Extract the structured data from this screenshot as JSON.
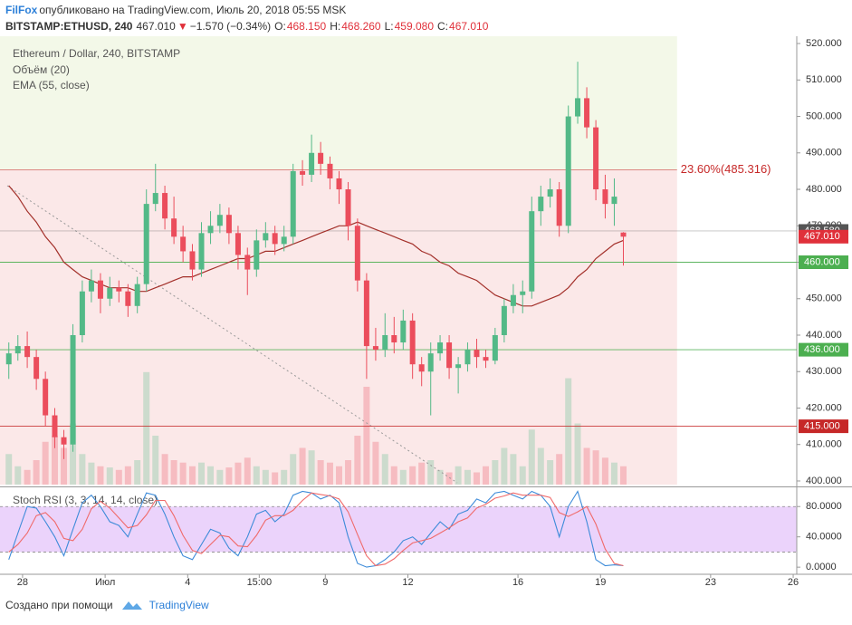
{
  "header": {
    "author": "FilFox",
    "published": "опубликовано на TradingView.com, Июль 20, 2018 05:55 MSK",
    "symbol": "BITSTAMP:ETHUSD, 240",
    "last": "467.010",
    "arrow": "▼",
    "change": "−1.570 (−0.34%)",
    "ohlc": [
      {
        "k": "O:",
        "v": "468.150"
      },
      {
        "k": "H:",
        "v": "468.260"
      },
      {
        "k": "L:",
        "v": "459.080"
      },
      {
        "k": "C:",
        "v": "467.010"
      }
    ]
  },
  "footer": {
    "text": "Создано при помощи",
    "brand": "TradingView"
  },
  "chart_data": {
    "type": "candlestick",
    "title": "Ethereum / Dollar, 240, BITSTAMP",
    "up_color": "#53b987",
    "down_color": "#eb4d5c",
    "x": [
      -0.5,
      -0.17,
      0.17,
      0.5,
      0.83,
      1.17,
      1.5,
      1.83,
      2.17,
      2.5,
      2.83,
      3.17,
      3.5,
      3.83,
      4.17,
      4.5,
      4.83,
      5.17,
      5.5,
      5.83,
      6.17,
      6.5,
      6.83,
      7.17,
      7.5,
      7.83,
      8.17,
      8.5,
      8.83,
      9.17,
      9.5,
      9.83,
      10.17,
      10.5,
      10.83,
      11.17,
      11.5,
      11.83,
      12.17,
      12.5,
      12.83,
      13.17,
      13.5,
      13.83,
      14.17,
      14.5,
      14.83,
      15.17,
      15.5,
      15.83,
      16.17,
      16.5,
      16.83,
      17.17,
      17.5,
      17.83,
      18.17,
      18.5,
      18.83,
      19.17,
      19.5,
      19.83,
      20.17,
      20.5,
      20.83,
      21.17,
      21.5,
      21.83
    ],
    "open": [
      432,
      435,
      437,
      434,
      428,
      418,
      412,
      410,
      440,
      452,
      455,
      450,
      453,
      452,
      448,
      454,
      476,
      479,
      472,
      467,
      463,
      458,
      468,
      470,
      473,
      468,
      462,
      458,
      466,
      468,
      465,
      467,
      485,
      484,
      490,
      487,
      483,
      480,
      470,
      455,
      437,
      436,
      440,
      438,
      444,
      432,
      430,
      435,
      438,
      431,
      432,
      436,
      434,
      433,
      440,
      448,
      451,
      452,
      474,
      478,
      480,
      470,
      500,
      505,
      497,
      480,
      476,
      468.15
    ],
    "high": [
      438,
      440,
      441,
      436,
      430,
      420,
      414,
      443,
      455,
      458,
      457,
      456,
      455,
      454,
      456,
      480,
      487,
      481,
      478,
      470,
      465,
      471,
      474,
      476,
      475,
      470,
      464,
      469,
      471,
      470,
      470,
      487,
      488,
      495,
      493,
      489,
      485,
      482,
      472,
      457,
      442,
      446,
      445,
      447,
      446,
      434,
      438,
      440,
      440,
      434,
      438,
      439,
      436,
      442,
      450,
      454,
      455,
      478,
      481,
      483,
      482,
      503,
      515,
      508,
      499,
      484,
      483,
      468.26
    ],
    "low": [
      428,
      433,
      431,
      425,
      415,
      409,
      406,
      408,
      438,
      449,
      446,
      448,
      449,
      445,
      446,
      452,
      474,
      469,
      465,
      460,
      455,
      456,
      465,
      468,
      465,
      458,
      451,
      456,
      464,
      462,
      463,
      465,
      481,
      482,
      484,
      480,
      476,
      466,
      452,
      428,
      433,
      434,
      435,
      436,
      428,
      426,
      418,
      433,
      428,
      424,
      430,
      431,
      431,
      432,
      438,
      446,
      446,
      450,
      470,
      475,
      467,
      468,
      498,
      494,
      477,
      472,
      470,
      459.08
    ],
    "close": [
      435,
      437,
      434,
      428,
      418,
      412,
      410,
      440,
      452,
      455,
      450,
      453,
      452,
      448,
      454,
      476,
      479,
      472,
      467,
      463,
      458,
      468,
      470,
      473,
      468,
      462,
      458,
      466,
      468,
      465,
      467,
      485,
      484,
      490,
      487,
      483,
      480,
      470,
      455,
      437,
      436,
      440,
      438,
      444,
      432,
      430,
      435,
      438,
      431,
      432,
      436,
      434,
      433,
      440,
      448,
      451,
      452,
      474,
      478,
      480,
      470,
      500,
      505,
      497,
      480,
      476,
      478,
      467.01
    ],
    "series": [
      {
        "name": "EMA (55, close)",
        "color": "#a3302a",
        "values": [
          481,
          478,
          474,
          471,
          467,
          464,
          460,
          458,
          456,
          455,
          454,
          453,
          453,
          453,
          452,
          452,
          453,
          454,
          455,
          456,
          456,
          457,
          458,
          459,
          460,
          461,
          461,
          462,
          463,
          463,
          464,
          465,
          466,
          467,
          468,
          469,
          470,
          470,
          471,
          470,
          469,
          468,
          467,
          466,
          465,
          463,
          462,
          460,
          459,
          457,
          456,
          455,
          453,
          451,
          450,
          449,
          448,
          448,
          449,
          450,
          451,
          453,
          456,
          458,
          461,
          463,
          465,
          466
        ]
      }
    ],
    "volume": {
      "name": "Объём (20)",
      "ylim": [
        0,
        100
      ],
      "values": [
        25,
        15,
        12,
        20,
        35,
        40,
        30,
        50,
        25,
        18,
        15,
        14,
        12,
        15,
        20,
        92,
        40,
        25,
        20,
        18,
        15,
        18,
        15,
        12,
        14,
        18,
        22,
        15,
        12,
        10,
        12,
        25,
        30,
        28,
        20,
        18,
        15,
        20,
        40,
        80,
        35,
        25,
        15,
        12,
        15,
        18,
        20,
        12,
        10,
        15,
        12,
        10,
        15,
        20,
        30,
        25,
        15,
        45,
        30,
        20,
        25,
        87,
        50,
        30,
        28,
        22,
        18,
        15
      ]
    },
    "xlim": [
      -0.82,
      28.13
    ],
    "xticks": [
      {
        "value": 0,
        "label": "28"
      },
      {
        "value": 3,
        "label": "Июл"
      },
      {
        "value": 6,
        "label": "4"
      },
      {
        "value": 8.6,
        "label": "15:00"
      },
      {
        "value": 11,
        "label": "9"
      },
      {
        "value": 14,
        "label": "12"
      },
      {
        "value": 18,
        "label": "16"
      },
      {
        "value": 21,
        "label": "19"
      },
      {
        "value": 25,
        "label": "23"
      },
      {
        "value": 28,
        "label": "26"
      }
    ],
    "ylim": [
      399,
      522
    ],
    "yticks": [
      {
        "value": 400,
        "label": "400.000"
      },
      {
        "value": 410,
        "label": "410.000"
      },
      {
        "value": 420,
        "label": "420.000"
      },
      {
        "value": 430,
        "label": "430.000"
      },
      {
        "value": 440,
        "label": "440.000"
      },
      {
        "value": 450,
        "label": "450.000"
      },
      {
        "value": 460,
        "label": "460.000"
      },
      {
        "value": 470,
        "label": "470.000"
      },
      {
        "value": 480,
        "label": "480.000"
      },
      {
        "value": 490,
        "label": "490.000"
      },
      {
        "value": 500,
        "label": "500.000"
      },
      {
        "value": 510,
        "label": "510.000"
      },
      {
        "value": 520,
        "label": "520.000"
      }
    ],
    "levels": [
      {
        "value": 468.58,
        "label": "468.580",
        "color": "#555555",
        "line": true
      },
      {
        "value": 467.01,
        "label": "467.010",
        "color": "#e0303a",
        "line": false
      },
      {
        "value": 460,
        "label": "460.000",
        "color": "#4caf50",
        "line": true
      },
      {
        "value": 436,
        "label": "436.000",
        "color": "#4caf50",
        "line": true
      },
      {
        "value": 415,
        "label": "415.000",
        "color": "#c62828",
        "line": true
      }
    ],
    "fib": {
      "value": 485.316,
      "label": "23.60%(485.316)",
      "color": "#c62828",
      "x_end": 23.78,
      "above_color": "#f3f8e8",
      "below_color": "#fbe8e8"
    },
    "indicator": {
      "title": "Stoch RSI (3, 3, 14, 14, close)",
      "ylim": [
        -7,
        103
      ],
      "band": [
        20,
        80
      ],
      "band_color": "#ebd3fb",
      "yticks": [
        {
          "value": 0,
          "label": "0.0000"
        },
        {
          "value": 40,
          "label": "40.0000"
        },
        {
          "value": 80,
          "label": "80.0000"
        }
      ],
      "series": [
        {
          "color": "#3d8bd9",
          "values": [
            10,
            45,
            80,
            78,
            60,
            40,
            15,
            50,
            85,
            95,
            80,
            60,
            55,
            40,
            70,
            98,
            95,
            70,
            40,
            15,
            10,
            30,
            50,
            45,
            25,
            15,
            40,
            70,
            75,
            60,
            70,
            95,
            100,
            98,
            90,
            95,
            85,
            40,
            5,
            0,
            2,
            10,
            20,
            35,
            40,
            30,
            45,
            60,
            50,
            70,
            75,
            90,
            85,
            98,
            100,
            95,
            90,
            100,
            95,
            80,
            40,
            80,
            100,
            60,
            10,
            2,
            3,
            2
          ]
        },
        {
          "color": "#f06a6a",
          "values": [
            20,
            30,
            45,
            68,
            72,
            60,
            38,
            35,
            50,
            77,
            87,
            78,
            65,
            52,
            55,
            69,
            88,
            88,
            68,
            42,
            22,
            18,
            30,
            42,
            40,
            28,
            27,
            42,
            62,
            68,
            68,
            75,
            88,
            98,
            96,
            94,
            90,
            73,
            43,
            15,
            2,
            4,
            11,
            22,
            32,
            35,
            38,
            45,
            52,
            60,
            65,
            78,
            83,
            91,
            94,
            98,
            95,
            95,
            95,
            92,
            72,
            67,
            73,
            80,
            57,
            24,
            5,
            2
          ]
        }
      ]
    }
  }
}
